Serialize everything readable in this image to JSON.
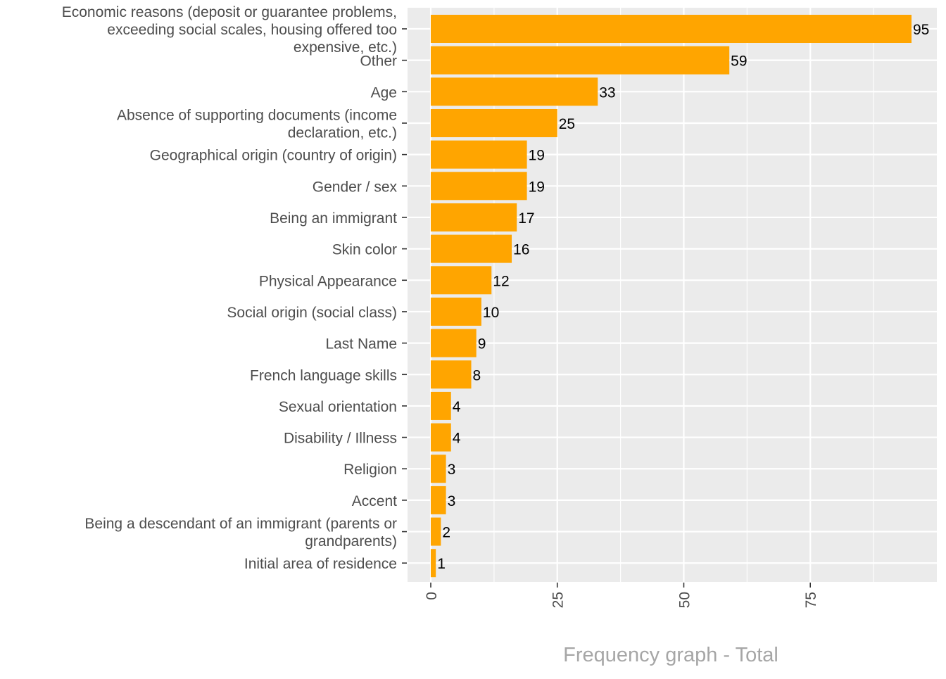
{
  "chart_data": {
    "type": "bar",
    "orientation": "horizontal",
    "title": "",
    "xlabel": "Frequency graph - Total",
    "ylabel": "",
    "xlim": [
      -1.8,
      98.5
    ],
    "xticks": [
      0,
      25,
      50,
      75
    ],
    "minor_xticks": [
      12.5,
      37.5,
      62.5,
      87.5
    ],
    "grid": true,
    "legend": "none",
    "categories": [
      "Economic reasons (deposit or guarantee problems, exceeding social scales, housing offered too expensive, etc.)",
      "Other",
      "Age",
      "Absence of supporting documents (income declaration, etc.)",
      "Geographical origin (country of origin)",
      "Gender / sex",
      "Being an immigrant",
      "Skin color",
      "Physical Appearance",
      "Social origin (social class)",
      "Last Name",
      "French language skills",
      "Sexual orientation",
      "Disability / Illness",
      "Religion",
      "Accent",
      "Being a descendant of an immigrant (parents or grandparents)",
      "Initial area of residence"
    ],
    "category_lines": [
      [
        "Economic reasons (deposit or guarantee problems,",
        "exceeding social scales, housing offered too",
        "expensive, etc.)"
      ],
      [
        "Other"
      ],
      [
        "Age"
      ],
      [
        "Absence of supporting documents (income",
        "declaration, etc.)"
      ],
      [
        "Geographical origin (country of origin)"
      ],
      [
        "Gender / sex"
      ],
      [
        "Being an immigrant"
      ],
      [
        "Skin color"
      ],
      [
        "Physical Appearance"
      ],
      [
        "Social origin (social class)"
      ],
      [
        "Last Name"
      ],
      [
        "French language skills"
      ],
      [
        "Sexual orientation"
      ],
      [
        "Disability / Illness"
      ],
      [
        "Religion"
      ],
      [
        "Accent"
      ],
      [
        "Being a descendant of an immigrant (parents or",
        "grandparents)"
      ],
      [
        "Initial area of residence"
      ]
    ],
    "values": [
      95,
      59,
      33,
      25,
      19,
      19,
      17,
      16,
      12,
      10,
      9,
      8,
      4,
      4,
      3,
      3,
      2,
      1
    ],
    "colors": {
      "bar": "#FFA500",
      "panel": "#EBEBEB",
      "grid": "#FFFFFF",
      "axis_text": "#4D4D4D",
      "axis_title": "#A6A6A6",
      "value_label": "#000000"
    }
  }
}
